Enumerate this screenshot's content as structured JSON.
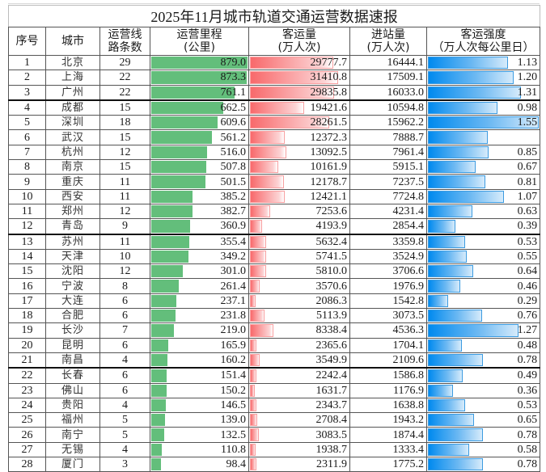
{
  "title": "2025年11月城市轨道交通运营数据速报",
  "headers": {
    "no": "序号",
    "city": "城市",
    "lines": [
      "运营线",
      "路条数"
    ],
    "mileage": [
      "运营里程",
      "(公里)"
    ],
    "ridership": [
      "客运量",
      "(万人次)"
    ],
    "entries": [
      "进站量",
      "(万人次)"
    ],
    "intensity": [
      "客运强度",
      "（万人次每公里日）"
    ]
  },
  "colors": {
    "mileage_bar": "#63BE7B",
    "ridership_bar": "#F8696B",
    "intensity_bar": "#008AEF"
  },
  "rows": [
    {
      "no": "1",
      "city": "北京",
      "lines": "29",
      "mileage": "879.0",
      "ridership": "29777.7",
      "entries": "16444.1",
      "intensity": "1.13"
    },
    {
      "no": "2",
      "city": "上海",
      "lines": "22",
      "mileage": "873.3",
      "ridership": "31410.8",
      "entries": "17509.1",
      "intensity": "1.20"
    },
    {
      "no": "3",
      "city": "广州",
      "lines": "22",
      "mileage": "761.1",
      "ridership": "29835.8",
      "entries": "16033.0",
      "intensity": "1.31"
    },
    {
      "no": "4",
      "city": "成都",
      "lines": "15",
      "mileage": "662.5",
      "ridership": "19421.6",
      "entries": "10594.8",
      "intensity": "0.98"
    },
    {
      "no": "5",
      "city": "深圳",
      "lines": "18",
      "mileage": "609.6",
      "ridership": "28261.5",
      "entries": "15962.2",
      "intensity": "1.55"
    },
    {
      "no": "6",
      "city": "武汉",
      "lines": "15",
      "mileage": "561.2",
      "ridership": "12372.3",
      "entries": "7888.7",
      "intensity": "",
      "intensity_bar": 0.84
    },
    {
      "no": "7",
      "city": "杭州",
      "lines": "12",
      "mileage": "516.0",
      "ridership": "13092.5",
      "entries": "7961.4",
      "intensity": "0.85"
    },
    {
      "no": "8",
      "city": "南京",
      "lines": "15",
      "mileage": "507.8",
      "ridership": "10161.9",
      "entries": "5915.1",
      "intensity": "0.67"
    },
    {
      "no": "9",
      "city": "重庆",
      "lines": "11",
      "mileage": "501.5",
      "ridership": "12178.7",
      "entries": "7237.5",
      "intensity": "0.81"
    },
    {
      "no": "10",
      "city": "西安",
      "lines": "11",
      "mileage": "385.2",
      "ridership": "12421.1",
      "entries": "7724.8",
      "intensity": "1.07"
    },
    {
      "no": "11",
      "city": "郑州",
      "lines": "12",
      "mileage": "382.7",
      "ridership": "7253.6",
      "entries": "4231.4",
      "intensity": "0.63"
    },
    {
      "no": "12",
      "city": "青岛",
      "lines": "9",
      "mileage": "360.9",
      "ridership": "4193.9",
      "entries": "2854.4",
      "intensity": "0.39"
    },
    {
      "no": "13",
      "city": "苏州",
      "lines": "11",
      "mileage": "355.4",
      "ridership": "5632.4",
      "entries": "3359.8",
      "intensity": "0.53"
    },
    {
      "no": "14",
      "city": "天津",
      "lines": "10",
      "mileage": "349.2",
      "ridership": "5741.5",
      "entries": "3524.9",
      "intensity": "0.55"
    },
    {
      "no": "15",
      "city": "沈阳",
      "lines": "12",
      "mileage": "301.0",
      "ridership": "5810.0",
      "entries": "3706.6",
      "intensity": "0.64"
    },
    {
      "no": "16",
      "city": "宁波",
      "lines": "8",
      "mileage": "261.4",
      "ridership": "3570.6",
      "entries": "1976.9",
      "intensity": "0.46"
    },
    {
      "no": "17",
      "city": "大连",
      "lines": "6",
      "mileage": "237.1",
      "ridership": "2086.3",
      "entries": "1542.8",
      "intensity": "0.29"
    },
    {
      "no": "18",
      "city": "合肥",
      "lines": "6",
      "mileage": "231.8",
      "ridership": "5113.9",
      "entries": "3073.5",
      "intensity": "0.76"
    },
    {
      "no": "19",
      "city": "长沙",
      "lines": "7",
      "mileage": "219.0",
      "ridership": "8338.4",
      "entries": "4536.3",
      "intensity": "1.27"
    },
    {
      "no": "20",
      "city": "昆明",
      "lines": "6",
      "mileage": "165.9",
      "ridership": "2365.6",
      "entries": "1704.1",
      "intensity": "0.48"
    },
    {
      "no": "21",
      "city": "南昌",
      "lines": "4",
      "mileage": "160.2",
      "ridership": "3549.9",
      "entries": "2109.6",
      "intensity": "0.78"
    },
    {
      "no": "22",
      "city": "长春",
      "lines": "6",
      "mileage": "151.4",
      "ridership": "2242.4",
      "entries": "1586.8",
      "intensity": "0.49"
    },
    {
      "no": "23",
      "city": "佛山",
      "lines": "6",
      "mileage": "150.2",
      "ridership": "1631.7",
      "entries": "1176.9",
      "intensity": "0.36"
    },
    {
      "no": "24",
      "city": "贵阳",
      "lines": "4",
      "mileage": "146.5",
      "ridership": "2343.7",
      "entries": "1638.8",
      "intensity": "0.53"
    },
    {
      "no": "25",
      "city": "福州",
      "lines": "5",
      "mileage": "139.0",
      "ridership": "2708.4",
      "entries": "1943.2",
      "intensity": "0.65"
    },
    {
      "no": "26",
      "city": "南宁",
      "lines": "5",
      "mileage": "132.5",
      "ridership": "3083.5",
      "entries": "1874.4",
      "intensity": "0.78"
    },
    {
      "no": "27",
      "city": "无锡",
      "lines": "4",
      "mileage": "110.8",
      "ridership": "1938.7",
      "entries": "1333.4",
      "intensity": "0.58"
    },
    {
      "no": "28",
      "city": "厦门",
      "lines": "3",
      "mileage": "98.4",
      "ridership": "2311.9",
      "entries": "1775.2",
      "intensity": "0.78"
    }
  ],
  "thick_before_rows": [
    4,
    13,
    22
  ]
}
